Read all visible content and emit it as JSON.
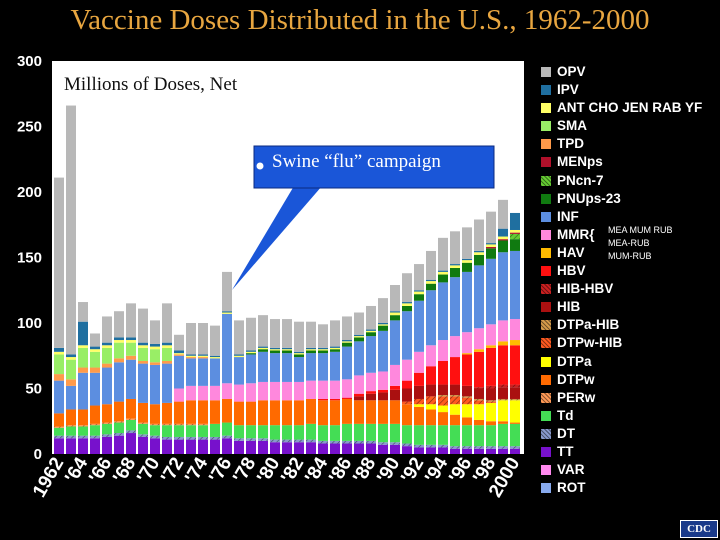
{
  "title": "Vaccine Doses Distributed in the U.S., 1962-2000",
  "unit_label": "Millions of Doses, Net",
  "annotation": "Swine “flu” campaign",
  "logo": "CDC",
  "mmr_notes": [
    "MEA MUM RUB",
    "MEA-RUB",
    "MUM-RUB"
  ],
  "legend": [
    {
      "label": "OPV",
      "color": "#b8b8b8"
    },
    {
      "label": "IPV",
      "color": "#1f6fa0"
    },
    {
      "label": "ANT CHO JEN RAB YF",
      "color": "#ffff66"
    },
    {
      "label": "SMA",
      "color": "#99ee66"
    },
    {
      "label": "TPD",
      "color": "#ff9a4a"
    },
    {
      "label": "MENps",
      "color": "#b0102a"
    },
    {
      "label": "PNcn-7",
      "color": "#66cc33",
      "pattern": true
    },
    {
      "label": "PNUps-23",
      "color": "#107a10"
    },
    {
      "label": "INF",
      "color": "#5c8ee0"
    },
    {
      "label": "MMR{",
      "color": "#ff88dd"
    },
    {
      "label": "HAV",
      "color": "#ffbb00"
    },
    {
      "label": "HBV",
      "color": "#ff1010"
    },
    {
      "label": "HIB-HBV",
      "color": "#cc2020",
      "pattern": true
    },
    {
      "label": "HIB",
      "color": "#aa1010"
    },
    {
      "label": "DTPa-HIB",
      "color": "#d49a4a",
      "pattern": true
    },
    {
      "label": "DTPw-HIB",
      "color": "#ff5a20",
      "pattern": true
    },
    {
      "label": "DTPa",
      "color": "#ffff00"
    },
    {
      "label": "DTPw",
      "color": "#ff6a00"
    },
    {
      "label": "PERw",
      "color": "#ff9955",
      "pattern": true
    },
    {
      "label": "Td",
      "color": "#44dd55"
    },
    {
      "label": "DT",
      "color": "#8899cc",
      "pattern": true
    },
    {
      "label": "TT",
      "color": "#7711cc"
    },
    {
      "label": "VAR",
      "color": "#ff88ee"
    },
    {
      "label": "ROT",
      "color": "#88aaee"
    }
  ],
  "chart_data": {
    "type": "bar",
    "stacked": true,
    "title": "Vaccine Doses Distributed in the U.S., 1962-2000",
    "ylabel": "Millions of Doses, Net",
    "ylim": [
      0,
      300
    ],
    "yticks": [
      0,
      50,
      100,
      150,
      200,
      250,
      300
    ],
    "categories": [
      "1962",
      "1963",
      "1964",
      "1965",
      "1966",
      "1967",
      "1968",
      "1969",
      "1970",
      "1971",
      "1972",
      "1973",
      "1974",
      "1975",
      "1976",
      "1977",
      "1978",
      "1979",
      "1980",
      "1981",
      "1982",
      "1983",
      "1984",
      "1985",
      "1986",
      "1987",
      "1988",
      "1989",
      "1990",
      "1991",
      "1992",
      "1993",
      "1994",
      "1995",
      "1996",
      "1997",
      "1998",
      "1999",
      "2000"
    ],
    "xtick_labels": [
      "1962",
      "'64",
      "'66",
      "'68",
      "'70",
      "'72",
      "'74",
      "'76",
      "'78",
      "'80",
      "'82",
      "'84",
      "'86",
      "'88",
      "'90",
      "'92",
      "'94",
      "'96",
      "'98",
      "2000"
    ],
    "grid": false,
    "legend_position": "right",
    "series": [
      {
        "name": "TT",
        "values": [
          12,
          12,
          12,
          12,
          13,
          14,
          16,
          13,
          12,
          11,
          11,
          11,
          11,
          11,
          12,
          10,
          10,
          10,
          9,
          9,
          9,
          9,
          8,
          8,
          8,
          8,
          8,
          7,
          7,
          6,
          5,
          5,
          5,
          4,
          4,
          4,
          4,
          4,
          4
        ]
      },
      {
        "name": "DT",
        "values": [
          2,
          2,
          2,
          2,
          2,
          2,
          2,
          2,
          2,
          2,
          2,
          2,
          2,
          2,
          2,
          2,
          2,
          2,
          2,
          2,
          2,
          2,
          2,
          2,
          2,
          2,
          2,
          2,
          2,
          2,
          2,
          2,
          2,
          2,
          2,
          2,
          2,
          2,
          2
        ]
      },
      {
        "name": "Td",
        "values": [
          6,
          7,
          7,
          8,
          8,
          8,
          8,
          8,
          8,
          9,
          9,
          9,
          9,
          10,
          10,
          10,
          10,
          10,
          11,
          11,
          11,
          12,
          12,
          12,
          13,
          13,
          13,
          14,
          14,
          14,
          15,
          15,
          15,
          16,
          16,
          16,
          16,
          17,
          17
        ]
      },
      {
        "name": "PERw",
        "values": [
          1,
          1,
          1,
          1,
          1,
          1,
          1,
          1,
          1,
          1,
          1,
          1,
          1,
          0,
          0,
          0,
          0,
          0,
          0,
          0,
          0,
          0,
          0,
          0,
          0,
          0,
          0,
          0,
          0,
          0,
          0,
          0,
          0,
          0,
          0,
          0,
          0,
          0,
          0
        ]
      },
      {
        "name": "DTPw",
        "values": [
          10,
          12,
          12,
          14,
          14,
          15,
          15,
          15,
          15,
          16,
          17,
          18,
          18,
          18,
          18,
          18,
          18,
          19,
          19,
          19,
          19,
          19,
          19,
          19,
          19,
          18,
          18,
          18,
          18,
          16,
          14,
          12,
          10,
          8,
          6,
          4,
          3,
          2,
          1
        ]
      },
      {
        "name": "DTPa",
        "values": [
          0,
          0,
          0,
          0,
          0,
          0,
          0,
          0,
          0,
          0,
          0,
          0,
          0,
          0,
          0,
          0,
          0,
          0,
          0,
          0,
          0,
          0,
          0,
          0,
          0,
          0,
          0,
          0,
          0,
          0,
          2,
          4,
          5,
          8,
          10,
          12,
          14,
          16,
          17
        ]
      },
      {
        "name": "DTPw-HIB",
        "values": [
          0,
          0,
          0,
          0,
          0,
          0,
          0,
          0,
          0,
          0,
          0,
          0,
          0,
          0,
          0,
          0,
          0,
          0,
          0,
          0,
          0,
          0,
          0,
          0,
          0,
          0,
          0,
          0,
          0,
          2,
          4,
          6,
          7,
          6,
          5,
          3,
          1,
          0,
          0
        ]
      },
      {
        "name": "DTPa-HIB",
        "values": [
          0,
          0,
          0,
          0,
          0,
          0,
          0,
          0,
          0,
          0,
          0,
          0,
          0,
          0,
          0,
          0,
          0,
          0,
          0,
          0,
          0,
          0,
          0,
          0,
          0,
          0,
          0,
          0,
          0,
          0,
          0,
          0,
          1,
          1,
          1,
          1,
          1,
          1,
          1
        ]
      },
      {
        "name": "HIB",
        "values": [
          0,
          0,
          0,
          0,
          0,
          0,
          0,
          0,
          0,
          0,
          0,
          0,
          0,
          0,
          0,
          0,
          0,
          0,
          0,
          0,
          0,
          0,
          0,
          0,
          0,
          3,
          5,
          6,
          8,
          10,
          10,
          9,
          8,
          8,
          8,
          8,
          9,
          9,
          9
        ]
      },
      {
        "name": "HIB-HBV",
        "values": [
          0,
          0,
          0,
          0,
          0,
          0,
          0,
          0,
          0,
          0,
          0,
          0,
          0,
          0,
          0,
          0,
          0,
          0,
          0,
          0,
          0,
          0,
          0,
          0,
          0,
          0,
          0,
          0,
          0,
          0,
          0,
          0,
          0,
          0,
          0,
          1,
          2,
          2,
          2
        ]
      },
      {
        "name": "HBV",
        "values": [
          0,
          0,
          0,
          0,
          0,
          0,
          0,
          0,
          0,
          0,
          0,
          0,
          0,
          0,
          0,
          0,
          0,
          0,
          0,
          0,
          0,
          0,
          1,
          1,
          1,
          2,
          2,
          2,
          3,
          6,
          10,
          14,
          18,
          21,
          24,
          27,
          29,
          30,
          30
        ]
      },
      {
        "name": "HAV",
        "values": [
          0,
          0,
          0,
          0,
          0,
          0,
          0,
          0,
          0,
          0,
          0,
          0,
          0,
          0,
          0,
          0,
          0,
          0,
          0,
          0,
          0,
          0,
          0,
          0,
          0,
          0,
          0,
          0,
          0,
          0,
          0,
          0,
          0,
          0,
          1,
          2,
          2,
          3,
          4
        ]
      },
      {
        "name": "MMR",
        "values": [
          0,
          0,
          0,
          0,
          0,
          0,
          0,
          0,
          0,
          0,
          10,
          11,
          11,
          11,
          12,
          13,
          14,
          14,
          14,
          14,
          14,
          14,
          14,
          14,
          14,
          14,
          14,
          14,
          16,
          16,
          16,
          16,
          16,
          16,
          16,
          16,
          16,
          16,
          16
        ]
      },
      {
        "name": "INF",
        "values": [
          25,
          18,
          28,
          25,
          28,
          30,
          30,
          30,
          30,
          30,
          25,
          21,
          21,
          21,
          53,
          21,
          22,
          23,
          22,
          22,
          19,
          21,
          21,
          22,
          25,
          26,
          28,
          31,
          34,
          37,
          39,
          42,
          44,
          45,
          46,
          48,
          50,
          52,
          52
        ]
      },
      {
        "name": "PNUps-23",
        "values": [
          0,
          0,
          0,
          0,
          0,
          0,
          0,
          0,
          0,
          0,
          0,
          0,
          0,
          0,
          0,
          0,
          1,
          2,
          2,
          2,
          2,
          2,
          2,
          2,
          3,
          3,
          3,
          4,
          4,
          4,
          5,
          5,
          6,
          7,
          7,
          8,
          8,
          9,
          9
        ]
      },
      {
        "name": "PNcn-7",
        "values": [
          0,
          0,
          0,
          0,
          0,
          0,
          0,
          0,
          0,
          0,
          0,
          0,
          0,
          0,
          0,
          0,
          0,
          0,
          0,
          0,
          0,
          0,
          0,
          0,
          0,
          0,
          0,
          0,
          0,
          0,
          0,
          0,
          0,
          0,
          0,
          0,
          0,
          0,
          4
        ]
      },
      {
        "name": "MENps",
        "values": [
          0,
          0,
          0,
          0,
          0,
          0,
          0,
          0,
          0,
          0,
          0,
          0,
          0,
          0,
          0,
          0,
          0,
          0,
          0,
          0,
          0,
          0,
          0,
          0,
          0,
          0,
          0,
          0,
          0,
          0,
          0,
          0,
          0,
          0,
          0,
          0,
          1,
          1,
          1
        ]
      },
      {
        "name": "TPD",
        "values": [
          5,
          5,
          4,
          4,
          3,
          3,
          3,
          2,
          2,
          2,
          1,
          1,
          1,
          0,
          0,
          0,
          0,
          0,
          0,
          0,
          0,
          0,
          0,
          0,
          0,
          0,
          0,
          0,
          0,
          0,
          0,
          0,
          0,
          0,
          0,
          0,
          0,
          0,
          0
        ]
      },
      {
        "name": "SMA",
        "values": [
          15,
          15,
          15,
          12,
          12,
          12,
          10,
          10,
          10,
          10,
          0,
          0,
          0,
          0,
          0,
          0,
          0,
          0,
          0,
          0,
          0,
          0,
          0,
          0,
          0,
          0,
          0,
          0,
          0,
          0,
          0,
          0,
          0,
          0,
          0,
          0,
          0,
          0,
          0
        ]
      },
      {
        "name": "ANT CHO JEN RAB YF",
        "values": [
          2,
          2,
          2,
          2,
          2,
          2,
          2,
          2,
          2,
          2,
          1,
          1,
          1,
          1,
          1,
          1,
          1,
          1,
          1,
          1,
          1,
          1,
          1,
          1,
          1,
          1,
          1,
          1,
          2,
          2,
          2,
          2,
          2,
          2,
          2,
          2,
          2,
          2,
          2
        ]
      },
      {
        "name": "IPV",
        "values": [
          3,
          2,
          18,
          2,
          2,
          2,
          2,
          2,
          2,
          2,
          2,
          1,
          1,
          1,
          1,
          1,
          1,
          1,
          1,
          1,
          1,
          1,
          1,
          1,
          1,
          1,
          1,
          1,
          1,
          1,
          1,
          1,
          1,
          1,
          1,
          1,
          1,
          6,
          13
        ]
      },
      {
        "name": "OPV",
        "values": [
          130,
          190,
          15,
          10,
          20,
          20,
          26,
          26,
          18,
          30,
          12,
          24,
          24,
          23,
          30,
          26,
          25,
          24,
          22,
          22,
          23,
          20,
          18,
          20,
          18,
          17,
          18,
          19,
          20,
          22,
          20,
          22,
          25,
          25,
          24,
          24,
          24,
          22,
          0
        ]
      }
    ]
  }
}
